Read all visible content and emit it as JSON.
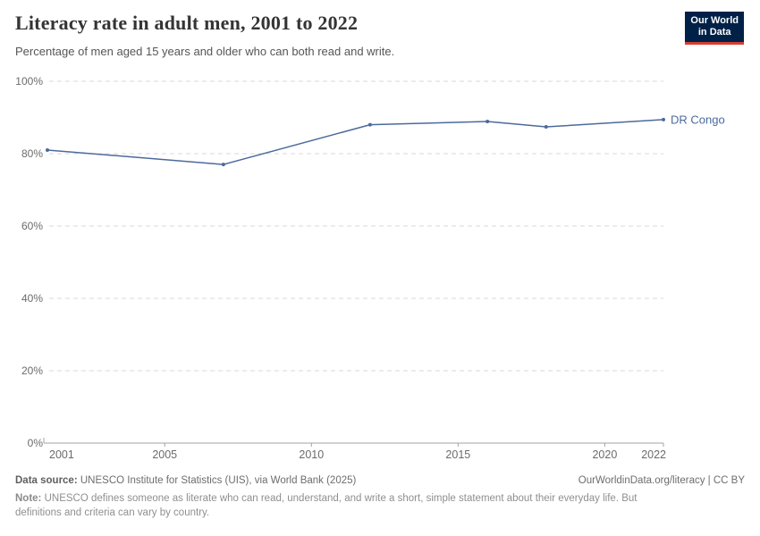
{
  "header": {
    "title": "Literacy rate in adult men, 2001 to 2022",
    "subtitle": "Percentage of men aged 15 years and older who can both read and write.",
    "logo": {
      "line1": "Our World",
      "line2": "in Data",
      "bg_color": "#002147",
      "accent_color": "#D63E32"
    }
  },
  "chart_data": {
    "type": "line",
    "title": "Literacy rate in adult men, 2001 to 2022",
    "subtitle": "Percentage of men aged 15 years and older who can both read and write.",
    "series": [
      {
        "name": "DR Congo",
        "color": "#4C6A9C",
        "x": [
          2001,
          2007,
          2012,
          2016,
          2018,
          2022
        ],
        "values": [
          81,
          77,
          88,
          88.9,
          87.4,
          89.4
        ]
      }
    ],
    "xlabel": "",
    "ylabel": "",
    "xlim": [
      2001,
      2022
    ],
    "ylim": [
      0,
      100
    ],
    "x_ticks": [
      2001,
      2005,
      2010,
      2015,
      2020,
      2022
    ],
    "y_ticks": [
      0,
      20,
      40,
      60,
      80,
      100
    ],
    "y_tick_suffix": "%",
    "grid": "horizontal dashed gridlines, solid baseline at 0%",
    "legend_position": "label at end of line",
    "axis_color": "#a3a3a3",
    "grid_color": "#d9d9d9",
    "tick_label_color": "#6b6b6b"
  },
  "footer": {
    "data_source_label": "Data source:",
    "data_source_text": "UNESCO Institute for Statistics (UIS), via World Bank (2025)",
    "link_text": "OurWorldinData.org/literacy | CC BY",
    "note_label": "Note:",
    "note_text": "UNESCO defines someone as literate who can read, understand, and write a short, simple statement about their everyday life. But definitions and criteria can vary by country."
  }
}
